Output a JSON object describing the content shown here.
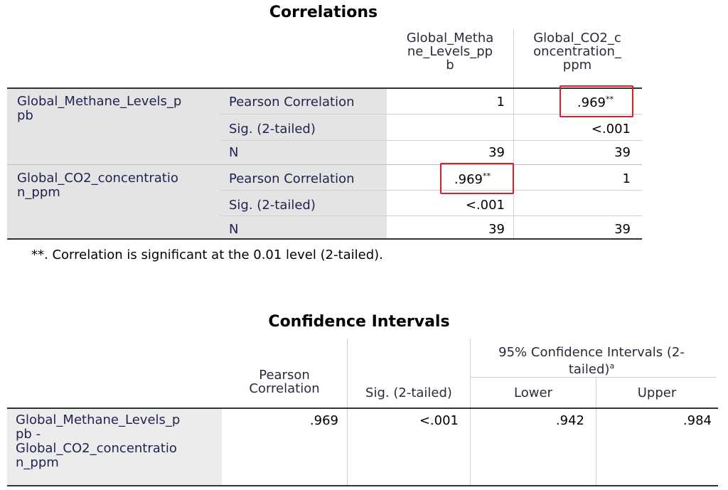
{
  "correlations": {
    "title": "Correlations",
    "col_headers": [
      "Global_Metha\nne_Levels_pp\nb",
      "Global_CO2_c\noncentration_\nppm"
    ],
    "col_header_lines": [
      [
        "Global_Metha",
        "ne_Levels_pp",
        "b"
      ],
      [
        "Global_CO2_c",
        "oncentration_",
        "ppm"
      ]
    ],
    "rows": [
      {
        "label_lines": [
          "Global_Methane_Levels_p",
          "pb"
        ],
        "stats": [
          {
            "name": "Pearson Correlation",
            "values": [
              "1",
              ".969"
            ],
            "sup": [
              "",
              "**"
            ]
          },
          {
            "name": "Sig. (2-tailed)",
            "values": [
              "",
              "<.001"
            ],
            "sup": [
              "",
              ""
            ]
          },
          {
            "name": "N",
            "values": [
              "39",
              "39"
            ],
            "sup": [
              "",
              ""
            ]
          }
        ]
      },
      {
        "label_lines": [
          "Global_CO2_concentratio",
          "n_ppm"
        ],
        "stats": [
          {
            "name": "Pearson Correlation",
            "values": [
              ".969",
              "1"
            ],
            "sup": [
              "**",
              ""
            ]
          },
          {
            "name": "Sig. (2-tailed)",
            "values": [
              "<.001",
              ""
            ],
            "sup": [
              "",
              ""
            ]
          },
          {
            "name": "N",
            "values": [
              "39",
              "39"
            ],
            "sup": [
              "",
              ""
            ]
          }
        ]
      }
    ],
    "footnote": "**. Correlation is significant at the 0.01 level (2-tailed)."
  },
  "confidence": {
    "title": "Confidence Intervals",
    "headers": {
      "pearson_lines": [
        "Pearson",
        "Correlation"
      ],
      "sig": "Sig. (2-tailed)",
      "ci_group_lines": [
        "95% Confidence Intervals (2-",
        "tailed)"
      ],
      "ci_group_sup": "a",
      "lower": "Lower",
      "upper": "Upper"
    },
    "row": {
      "label_lines": [
        "Global_Methane_Levels_p",
        "pb -",
        "Global_CO2_concentratio",
        "n_ppm"
      ],
      "pearson": ".969",
      "sig": "<.001",
      "lower": ".942",
      "upper": ".984"
    }
  },
  "highlight_color": "#d81f2a"
}
